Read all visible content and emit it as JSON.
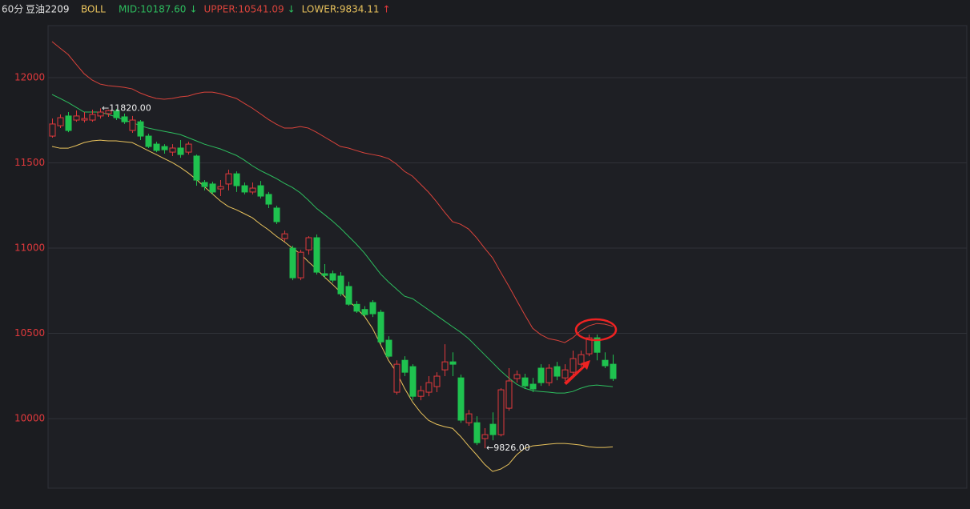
{
  "chart_data": {
    "type": "candlestick",
    "period": "60分",
    "symbol": "豆油2209",
    "indicator": "BOLL",
    "ylim": [
      9592,
      12305
    ],
    "yticks": [
      10000,
      10500,
      11000,
      11500,
      12000
    ],
    "grid": true,
    "up_color": "#e0393c",
    "down_color": "#1fc24f",
    "categories": [
      null,
      null,
      null,
      null,
      null,
      null,
      null,
      null,
      null,
      null,
      null,
      null,
      null,
      null,
      null,
      null,
      null,
      null,
      null,
      null,
      null,
      null,
      null,
      null,
      null,
      null,
      null,
      null,
      null,
      null,
      null,
      null,
      null,
      null,
      null,
      null,
      null,
      null,
      null,
      null,
      null,
      null,
      null,
      null,
      null,
      null,
      null,
      null,
      null,
      null,
      null,
      null,
      null,
      null,
      null,
      null,
      null,
      null,
      null,
      null,
      null,
      null,
      null,
      null,
      null,
      null,
      null,
      null,
      null,
      null,
      null
    ],
    "ohlc": [
      [
        11657,
        11760,
        11648,
        11728
      ],
      [
        11718,
        11784,
        11704,
        11765
      ],
      [
        11775,
        11798,
        11680,
        11690
      ],
      [
        11751,
        11807,
        11741,
        11775
      ],
      [
        11751,
        11798,
        11737,
        11760
      ],
      [
        11751,
        11812,
        11741,
        11784
      ],
      [
        11775,
        11820,
        11760,
        11798
      ],
      [
        11789,
        11812,
        11770,
        11807
      ],
      [
        11803,
        11817,
        11751,
        11765
      ],
      [
        11770,
        11789,
        11728,
        11741
      ],
      [
        11690,
        11775,
        11676,
        11751
      ],
      [
        11741,
        11751,
        11634,
        11657
      ],
      [
        11657,
        11671,
        11587,
        11596
      ],
      [
        11610,
        11624,
        11563,
        11573
      ],
      [
        11596,
        11610,
        11554,
        11577
      ],
      [
        11563,
        11610,
        11540,
        11587
      ],
      [
        11587,
        11634,
        11530,
        11549
      ],
      [
        11563,
        11624,
        11549,
        11610
      ],
      [
        11540,
        11549,
        11366,
        11399
      ],
      [
        11385,
        11399,
        11338,
        11361
      ],
      [
        11376,
        11390,
        11315,
        11329
      ],
      [
        11347,
        11399,
        11305,
        11361
      ],
      [
        11376,
        11460,
        11338,
        11436
      ],
      [
        11436,
        11450,
        11329,
        11366
      ],
      [
        11366,
        11385,
        11315,
        11329
      ],
      [
        11329,
        11385,
        11315,
        11352
      ],
      [
        11366,
        11394,
        11291,
        11305
      ],
      [
        11315,
        11329,
        11235,
        11258
      ],
      [
        11235,
        11249,
        11141,
        11155
      ],
      [
        11056,
        11103,
        11038,
        11084
      ],
      [
        11000,
        11014,
        10812,
        10826
      ],
      [
        10826,
        10990,
        10812,
        10976
      ],
      [
        10990,
        11070,
        10962,
        11061
      ],
      [
        11061,
        11080,
        10845,
        10859
      ],
      [
        10850,
        10906,
        10822,
        10840
      ],
      [
        10850,
        10868,
        10798,
        10812
      ],
      [
        10836,
        10859,
        10718,
        10732
      ],
      [
        10775,
        10803,
        10662,
        10671
      ],
      [
        10670,
        10690,
        10620,
        10630
      ],
      [
        10640,
        10660,
        10600,
        10610
      ],
      [
        10681,
        10695,
        10596,
        10615
      ],
      [
        10624,
        10638,
        10436,
        10450
      ],
      [
        10460,
        10483,
        10356,
        10366
      ],
      [
        10155,
        10342,
        10141,
        10319
      ],
      [
        10342,
        10366,
        10249,
        10272
      ],
      [
        10305,
        10319,
        10108,
        10131
      ],
      [
        10131,
        10192,
        10108,
        10164
      ],
      [
        10155,
        10249,
        10131,
        10211
      ],
      [
        10188,
        10272,
        10155,
        10249
      ],
      [
        10286,
        10436,
        10249,
        10333
      ],
      [
        10333,
        10389,
        10249,
        10319
      ],
      [
        10239,
        10258,
        9976,
        9991
      ],
      [
        9976,
        10051,
        9958,
        10028
      ],
      [
        9976,
        10014,
        9845,
        9859
      ],
      [
        9883,
        9944,
        9826,
        9906
      ],
      [
        9967,
        10037,
        9873,
        9906
      ],
      [
        9906,
        10178,
        9896,
        10169
      ],
      [
        10061,
        10296,
        10047,
        10221
      ],
      [
        10235,
        10282,
        10211,
        10258
      ],
      [
        10239,
        10263,
        10174,
        10192
      ],
      [
        10202,
        10239,
        10155,
        10174
      ],
      [
        10296,
        10319,
        10192,
        10211
      ],
      [
        10211,
        10319,
        10192,
        10296
      ],
      [
        10305,
        10333,
        10225,
        10249
      ],
      [
        10239,
        10319,
        10221,
        10286
      ],
      [
        10272,
        10399,
        10258,
        10352
      ],
      [
        10319,
        10399,
        10305,
        10375
      ],
      [
        10380,
        10493,
        10366,
        10474
      ],
      [
        10474,
        10493,
        10342,
        10389
      ],
      [
        10342,
        10389,
        10296,
        10310
      ],
      [
        10319,
        10375,
        10221,
        10235
      ]
    ],
    "series": [
      {
        "name": "MID:10187.60",
        "color": "#2dbd5e",
        "arrow": "↓",
        "arrow_color": "#2dbd5e",
        "values": [
          11901,
          11878,
          11854,
          11826,
          11798,
          11798,
          11798,
          11784,
          11770,
          11751,
          11737,
          11718,
          11704,
          11694,
          11685,
          11676,
          11666,
          11648,
          11629,
          11610,
          11596,
          11582,
          11563,
          11544,
          11516,
          11483,
          11455,
          11432,
          11408,
          11380,
          11356,
          11324,
          11281,
          11234,
          11197,
          11159,
          11117,
          11070,
          11023,
          10971,
          10910,
          10849,
          10802,
          10760,
          10718,
          10704,
          10671,
          10638,
          10605,
          10572,
          10539,
          10507,
          10469,
          10422,
          10375,
          10328,
          10281,
          10239,
          10202,
          10178,
          10164,
          10159,
          10155,
          10150,
          10150,
          10159,
          10178,
          10192,
          10197,
          10192,
          10187.6
        ]
      },
      {
        "name": "UPPER:10541.09",
        "color": "#d9433b",
        "arrow": "↓",
        "arrow_color": "#2dbd5e",
        "values": [
          12211,
          12173,
          12136,
          12079,
          12023,
          11986,
          11962,
          11953,
          11948,
          11943,
          11934,
          11910,
          11892,
          11878,
          11873,
          11878,
          11887,
          11892,
          11906,
          11915,
          11915,
          11906,
          11892,
          11878,
          11849,
          11821,
          11788,
          11755,
          11727,
          11704,
          11704,
          11713,
          11704,
          11680,
          11652,
          11624,
          11596,
          11587,
          11572,
          11558,
          11549,
          11540,
          11525,
          11493,
          11450,
          11422,
          11375,
          11328,
          11272,
          11211,
          11155,
          11140,
          11112,
          11061,
          11000,
          10943,
          10859,
          10779,
          10694,
          10610,
          10530,
          10493,
          10469,
          10460,
          10446,
          10474,
          10516,
          10544,
          10558,
          10554,
          10541.09
        ]
      },
      {
        "name": "LOWER:9834.11",
        "color": "#e8c25c",
        "arrow": "↑",
        "arrow_color": "#e0393c",
        "values": [
          11596,
          11586,
          11586,
          11601,
          11619,
          11629,
          11633,
          11629,
          11629,
          11624,
          11619,
          11596,
          11572,
          11549,
          11525,
          11502,
          11474,
          11441,
          11403,
          11361,
          11319,
          11277,
          11244,
          11225,
          11202,
          11178,
          11141,
          11108,
          11070,
          11037,
          11000,
          10967,
          10920,
          10878,
          10831,
          10788,
          10742,
          10694,
          10647,
          10600,
          10530,
          10436,
          10342,
          10272,
          10178,
          10098,
          10037,
          9990,
          9967,
          9953,
          9943,
          9896,
          9840,
          9788,
          9732,
          9690,
          9704,
          9732,
          9788,
          9826,
          9840,
          9845,
          9850,
          9854,
          9854,
          9850,
          9845,
          9835,
          9831,
          9831,
          9834.11
        ]
      }
    ],
    "annotations": [
      {
        "label": "←11820.00",
        "value": 11820
      },
      {
        "label": "←9826.00",
        "value": 9826
      }
    ]
  }
}
